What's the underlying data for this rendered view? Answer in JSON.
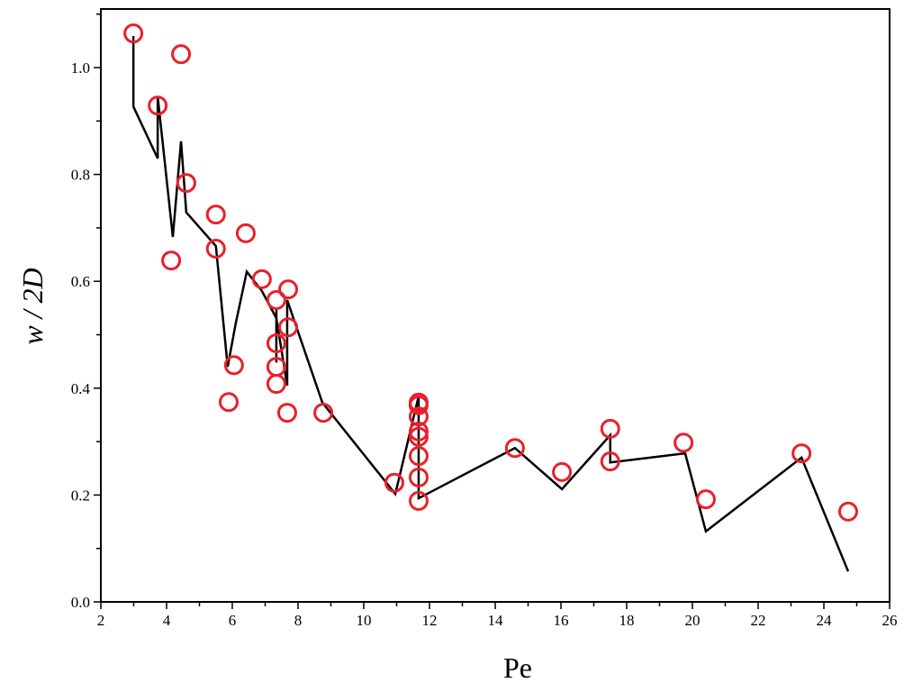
{
  "chart_data": {
    "type": "scatter",
    "xlabel": "Pe",
    "ylabel": "w / 2D",
    "xlim": [
      2,
      26
    ],
    "ylim": [
      0.0,
      1.1
    ],
    "xticks": [
      "2",
      "4",
      "6",
      "8",
      "10",
      "12",
      "14",
      "16",
      "18",
      "20",
      "22",
      "24",
      "26"
    ],
    "yticks": [
      "0.0",
      "0.2",
      "0.4",
      "0.6",
      "0.8",
      "1.0"
    ],
    "grid": false,
    "legend": "none",
    "series": [
      {
        "type": "scatter",
        "marker": "open-circle",
        "color": "#e8202a",
        "points": [
          [
            2.99,
            1.064
          ],
          [
            4.44,
            1.025
          ],
          [
            3.73,
            0.929
          ],
          [
            4.6,
            0.784
          ],
          [
            5.5,
            0.725
          ],
          [
            6.41,
            0.69
          ],
          [
            5.5,
            0.661
          ],
          [
            4.14,
            0.639
          ],
          [
            6.9,
            0.604
          ],
          [
            7.7,
            0.585
          ],
          [
            7.34,
            0.565
          ],
          [
            7.7,
            0.514
          ],
          [
            7.34,
            0.484
          ],
          [
            6.05,
            0.443
          ],
          [
            7.34,
            0.44
          ],
          [
            7.34,
            0.408
          ],
          [
            5.89,
            0.374
          ],
          [
            7.67,
            0.354
          ],
          [
            8.77,
            0.354
          ],
          [
            10.93,
            0.223
          ],
          [
            11.67,
            0.373
          ],
          [
            11.67,
            0.368
          ],
          [
            11.67,
            0.347
          ],
          [
            11.67,
            0.319
          ],
          [
            11.67,
            0.309
          ],
          [
            11.67,
            0.273
          ],
          [
            11.67,
            0.233
          ],
          [
            11.67,
            0.189
          ],
          [
            14.6,
            0.288
          ],
          [
            16.03,
            0.243
          ],
          [
            17.5,
            0.324
          ],
          [
            17.5,
            0.263
          ],
          [
            19.73,
            0.298
          ],
          [
            20.41,
            0.192
          ],
          [
            23.32,
            0.278
          ],
          [
            24.74,
            0.169
          ]
        ]
      },
      {
        "type": "line",
        "color": "#000000",
        "points": [
          [
            2.99,
            1.059
          ],
          [
            2.99,
            0.927
          ],
          [
            3.73,
            0.83
          ],
          [
            3.73,
            0.946
          ],
          [
            4.19,
            0.683
          ],
          [
            4.44,
            0.862
          ],
          [
            4.6,
            0.729
          ],
          [
            5.5,
            0.666
          ],
          [
            5.86,
            0.44
          ],
          [
            6.1,
            0.52
          ],
          [
            6.44,
            0.618
          ],
          [
            6.9,
            0.582
          ],
          [
            7.34,
            0.531
          ],
          [
            7.34,
            0.548
          ],
          [
            7.34,
            0.448
          ],
          [
            7.34,
            0.531
          ],
          [
            7.67,
            0.405
          ],
          [
            7.67,
            0.565
          ],
          [
            8.74,
            0.373
          ],
          [
            10.96,
            0.202
          ],
          [
            11.67,
            0.385
          ],
          [
            11.67,
            0.32
          ],
          [
            11.67,
            0.194
          ],
          [
            14.6,
            0.288
          ],
          [
            16.03,
            0.211
          ],
          [
            17.5,
            0.312
          ],
          [
            17.5,
            0.261
          ],
          [
            19.78,
            0.278
          ],
          [
            20.41,
            0.132
          ],
          [
            23.32,
            0.27
          ],
          [
            24.74,
            0.057
          ]
        ]
      }
    ]
  }
}
